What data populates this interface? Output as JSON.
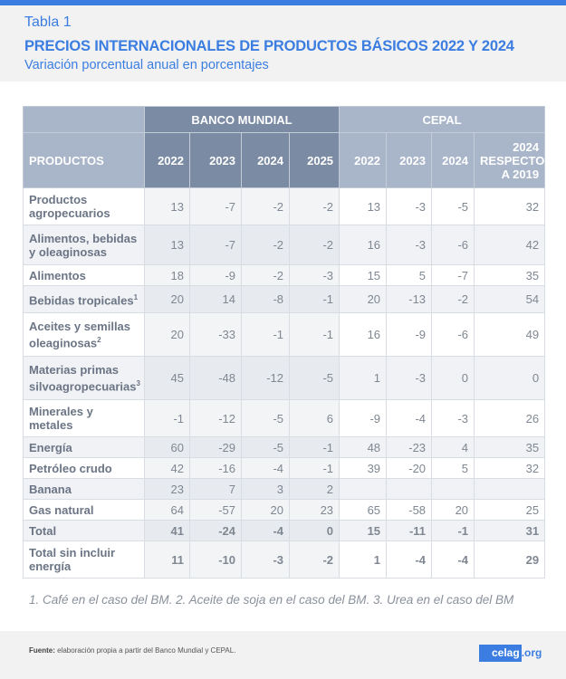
{
  "header": {
    "label": "Tabla 1",
    "title": "PRECIOS INTERNACIONALES DE PRODUCTOS BÁSICOS 2022 Y 2024",
    "subtitle": "Variación porcentual anual en porcentajes"
  },
  "table": {
    "group_headers": [
      "BANCO MUNDIAL",
      "CEPAL"
    ],
    "columns": [
      "PRODUCTOS",
      "2022",
      "2023",
      "2024",
      "2025",
      "2022",
      "2023",
      "2024",
      "2024 RESPECTO A 2019"
    ],
    "rows": [
      {
        "product": "Productos agropecuarios",
        "sup": "",
        "values": [
          "13",
          "-7",
          "-2",
          "-2",
          "13",
          "-3",
          "-5",
          "32"
        ]
      },
      {
        "product": "Alimentos, bebidas y oleaginosas",
        "sup": "",
        "values": [
          "13",
          "-7",
          "-2",
          "-2",
          "16",
          "-3",
          "-6",
          "42"
        ]
      },
      {
        "product": "Alimentos",
        "sup": "",
        "values": [
          "18",
          "-9",
          "-2",
          "-3",
          "15",
          "5",
          "-7",
          "35"
        ]
      },
      {
        "product": "Bebidas tropicales",
        "sup": "1",
        "values": [
          "20",
          "14",
          "-8",
          "-1",
          "20",
          "-13",
          "-2",
          "54"
        ]
      },
      {
        "product": "Aceites y semillas oleaginosas",
        "sup": "2",
        "values": [
          "20",
          "-33",
          "-1",
          "-1",
          "16",
          "-9",
          "-6",
          "49"
        ]
      },
      {
        "product": "Materias primas silvoagropecuarias",
        "sup": "3",
        "values": [
          "45",
          "-48",
          "-12",
          "-5",
          "1",
          "-3",
          "0",
          "0"
        ]
      },
      {
        "product": "Minerales y metales",
        "sup": "",
        "values": [
          "-1",
          "-12",
          "-5",
          "6",
          "-9",
          "-4",
          "-3",
          "26"
        ]
      },
      {
        "product": "Energía",
        "sup": "",
        "values": [
          "60",
          "-29",
          "-5",
          "-1",
          "48",
          "-23",
          "4",
          "35"
        ]
      },
      {
        "product": "Petróleo crudo",
        "sup": "",
        "values": [
          "42",
          "-16",
          "-4",
          "-1",
          "39",
          "-20",
          "5",
          "32"
        ]
      },
      {
        "product": "Banana",
        "sup": "",
        "values": [
          "23",
          "7",
          "3",
          "2",
          "",
          "",
          "",
          ""
        ]
      },
      {
        "product": "Gas natural",
        "sup": "",
        "values": [
          "64",
          "-57",
          "20",
          "23",
          "65",
          "-58",
          "20",
          "25"
        ]
      },
      {
        "product": "Total",
        "sup": "",
        "bold": true,
        "values": [
          "41",
          "-24",
          "-4",
          "0",
          "15",
          "-11",
          "-1",
          "31"
        ]
      },
      {
        "product": "Total sin incluir energía",
        "sup": "",
        "bold": true,
        "values": [
          "11",
          "-10",
          "-3",
          "-2",
          "1",
          "-4",
          "-4",
          "29"
        ]
      }
    ]
  },
  "note": "1. Café en el caso del BM. 2. Aceite de soja en el caso del BM. 3. Urea en el caso del BM",
  "footer": {
    "source_label": "Fuente:",
    "source_text": " elaboración propia a partir del Banco Mundial y CEPAL.",
    "logo_main": "celag",
    "logo_suffix": ".org"
  },
  "colors": {
    "accent": "#3b7de0",
    "header_bm": "#7b8ba4",
    "header_cepal": "#a9b5c9"
  }
}
